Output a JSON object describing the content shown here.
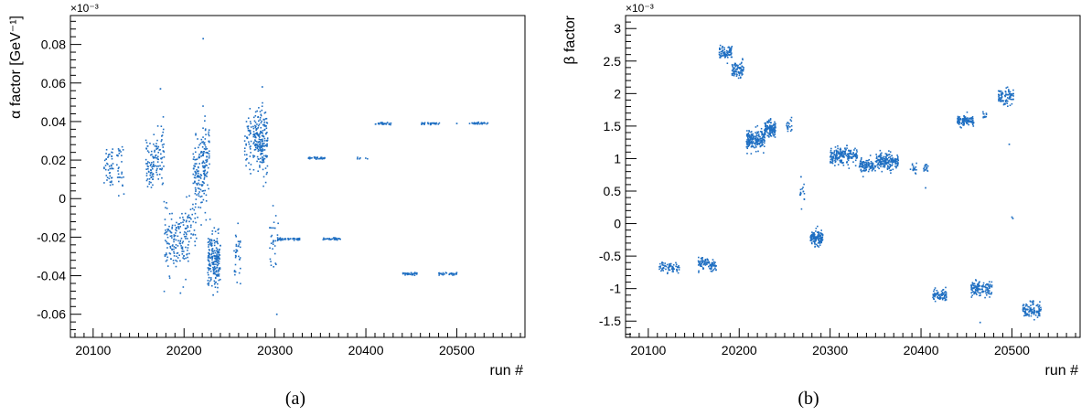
{
  "colors": {
    "points": "#1f6fc2",
    "axis": "#000000",
    "background": "#ffffff"
  },
  "chart_data": [
    {
      "type": "scatter",
      "caption": "(a)",
      "xlabel": "run #",
      "ylabel": "α factor [GeV⁻¹]",
      "exponent_label": "×10⁻³",
      "xlim": [
        20075,
        20575
      ],
      "ylim": [
        -0.072,
        0.095
      ],
      "xticks": [
        20100,
        20200,
        20300,
        20400,
        20500
      ],
      "xtick_labels": [
        "20100",
        "20200",
        "20300",
        "20400",
        "20500"
      ],
      "yticks": [
        -0.06,
        -0.04,
        -0.02,
        0,
        0.02,
        0.04,
        0.06,
        0.08
      ],
      "ytick_labels": [
        "-0.06",
        "-0.04",
        "-0.02",
        "0",
        "0.02",
        "0.04",
        "0.06",
        "0.08"
      ],
      "grid": false,
      "clusters": [
        {
          "x": [
            20112,
            20122
          ],
          "y": 0.018,
          "spread": 0.008,
          "n": 45
        },
        {
          "x": [
            20125,
            20134
          ],
          "y": 0.016,
          "spread": 0.008,
          "n": 30
        },
        {
          "x": [
            20158,
            20166
          ],
          "y": 0.016,
          "spread": 0.009,
          "n": 55
        },
        {
          "x": [
            20166,
            20178
          ],
          "y": 0.023,
          "spread": 0.009,
          "n": 70
        },
        {
          "x": [
            20178,
            20190
          ],
          "y": -0.022,
          "spread": 0.01,
          "n": 70
        },
        {
          "x": [
            20190,
            20205
          ],
          "y": -0.022,
          "spread": 0.011,
          "n": 90
        },
        {
          "x": [
            20205,
            20214
          ],
          "y": -0.015,
          "spread": 0.01,
          "n": 30
        },
        {
          "x": [
            20210,
            20225
          ],
          "y": 0.012,
          "spread": 0.012,
          "n": 140
        },
        {
          "x": [
            20220,
            20228
          ],
          "y": 0.025,
          "spread": 0.01,
          "n": 50
        },
        {
          "x": [
            20226,
            20240
          ],
          "y": -0.032,
          "spread": 0.009,
          "n": 200
        },
        {
          "x": [
            20255,
            20262
          ],
          "y": -0.03,
          "spread": 0.009,
          "n": 35
        },
        {
          "x": [
            20266,
            20274
          ],
          "y": 0.03,
          "spread": 0.013,
          "n": 45
        },
        {
          "x": [
            20276,
            20292
          ],
          "y": 0.03,
          "spread": 0.011,
          "n": 200
        },
        {
          "x": [
            20294,
            20304
          ],
          "y": -0.022,
          "spread": 0.011,
          "n": 30
        },
        {
          "x": [
            20303,
            20328
          ],
          "y": -0.021,
          "spread": 0.0004,
          "n": 40
        },
        {
          "x": [
            20335,
            20355
          ],
          "y": 0.021,
          "spread": 0.0004,
          "n": 35
        },
        {
          "x": [
            20352,
            20372
          ],
          "y": -0.021,
          "spread": 0.0004,
          "n": 30
        },
        {
          "x": [
            20390,
            20402
          ],
          "y": 0.021,
          "spread": 0.0004,
          "n": 6
        },
        {
          "x": [
            20410,
            20428
          ],
          "y": 0.039,
          "spread": 0.0004,
          "n": 30
        },
        {
          "x": [
            20440,
            20457
          ],
          "y": -0.039,
          "spread": 0.0004,
          "n": 30
        },
        {
          "x": [
            20460,
            20482
          ],
          "y": 0.039,
          "spread": 0.0004,
          "n": 30
        },
        {
          "x": [
            20480,
            20500
          ],
          "y": -0.039,
          "spread": 0.0004,
          "n": 30
        },
        {
          "x": [
            20514,
            20535
          ],
          "y": 0.039,
          "spread": 0.0004,
          "n": 30
        }
      ],
      "outliers": [
        [
          20221,
          0.083
        ],
        [
          20174,
          0.057
        ],
        [
          20286,
          0.058
        ],
        [
          20302,
          -0.06
        ],
        [
          20196,
          -0.049
        ],
        [
          20232,
          -0.05
        ],
        [
          20500,
          0.039
        ]
      ]
    },
    {
      "type": "scatter",
      "caption": "(b)",
      "xlabel": "run #",
      "ylabel": "β factor",
      "exponent_label": "×10⁻³",
      "xlim": [
        20075,
        20575
      ],
      "ylim": [
        -1.75,
        3.2
      ],
      "xticks": [
        20100,
        20200,
        20300,
        20400,
        20500
      ],
      "xtick_labels": [
        "20100",
        "20200",
        "20300",
        "20400",
        "20500"
      ],
      "yticks": [
        -1.5,
        -1,
        -0.5,
        0,
        0.5,
        1,
        1.5,
        2,
        2.5,
        3
      ],
      "ytick_labels": [
        "-1.5",
        "-1",
        "-0.5",
        "0",
        "0.5",
        "1",
        "1.5",
        "2",
        "2.5",
        "3"
      ],
      "grid": false,
      "clusters": [
        {
          "x": [
            20112,
            20125
          ],
          "y": -0.67,
          "spread": 0.05,
          "n": 40
        },
        {
          "x": [
            20126,
            20134
          ],
          "y": -0.68,
          "spread": 0.05,
          "n": 25
        },
        {
          "x": [
            20155,
            20166
          ],
          "y": -0.6,
          "spread": 0.06,
          "n": 50
        },
        {
          "x": [
            20166,
            20175
          ],
          "y": -0.64,
          "spread": 0.06,
          "n": 40
        },
        {
          "x": [
            20178,
            20192
          ],
          "y": 2.62,
          "spread": 0.07,
          "n": 80
        },
        {
          "x": [
            20192,
            20205
          ],
          "y": 2.38,
          "spread": 0.08,
          "n": 80
        },
        {
          "x": [
            20208,
            20228
          ],
          "y": 1.28,
          "spread": 0.11,
          "n": 200
        },
        {
          "x": [
            20228,
            20240
          ],
          "y": 1.45,
          "spread": 0.09,
          "n": 130
        },
        {
          "x": [
            20252,
            20258
          ],
          "y": 1.5,
          "spread": 0.07,
          "n": 20
        },
        {
          "x": [
            20266,
            20272
          ],
          "y": 0.45,
          "spread": 0.1,
          "n": 15
        },
        {
          "x": [
            20278,
            20292
          ],
          "y": -0.23,
          "spread": 0.08,
          "n": 130
        },
        {
          "x": [
            20300,
            20330
          ],
          "y": 1.05,
          "spread": 0.08,
          "n": 200
        },
        {
          "x": [
            20332,
            20350
          ],
          "y": 0.9,
          "spread": 0.07,
          "n": 100
        },
        {
          "x": [
            20350,
            20375
          ],
          "y": 0.96,
          "spread": 0.08,
          "n": 180
        },
        {
          "x": [
            20388,
            20395
          ],
          "y": 0.85,
          "spread": 0.05,
          "n": 15
        },
        {
          "x": [
            20402,
            20408
          ],
          "y": 0.85,
          "spread": 0.06,
          "n": 15
        },
        {
          "x": [
            20413,
            20428
          ],
          "y": -1.1,
          "spread": 0.06,
          "n": 80
        },
        {
          "x": [
            20440,
            20458
          ],
          "y": 1.58,
          "spread": 0.05,
          "n": 110
        },
        {
          "x": [
            20468,
            20472
          ],
          "y": 1.65,
          "spread": 0.06,
          "n": 12
        },
        {
          "x": [
            20455,
            20478
          ],
          "y": -1.0,
          "spread": 0.08,
          "n": 130
        },
        {
          "x": [
            20485,
            20502
          ],
          "y": 1.95,
          "spread": 0.08,
          "n": 80
        },
        {
          "x": [
            20512,
            20532
          ],
          "y": -1.33,
          "spread": 0.08,
          "n": 110
        }
      ],
      "outliers": [
        [
          20497,
          1.22
        ],
        [
          20500,
          0.1
        ],
        [
          20501,
          0.08
        ],
        [
          20465,
          -1.52
        ],
        [
          20405,
          0.55
        ],
        [
          20268,
          0.72
        ]
      ]
    }
  ]
}
